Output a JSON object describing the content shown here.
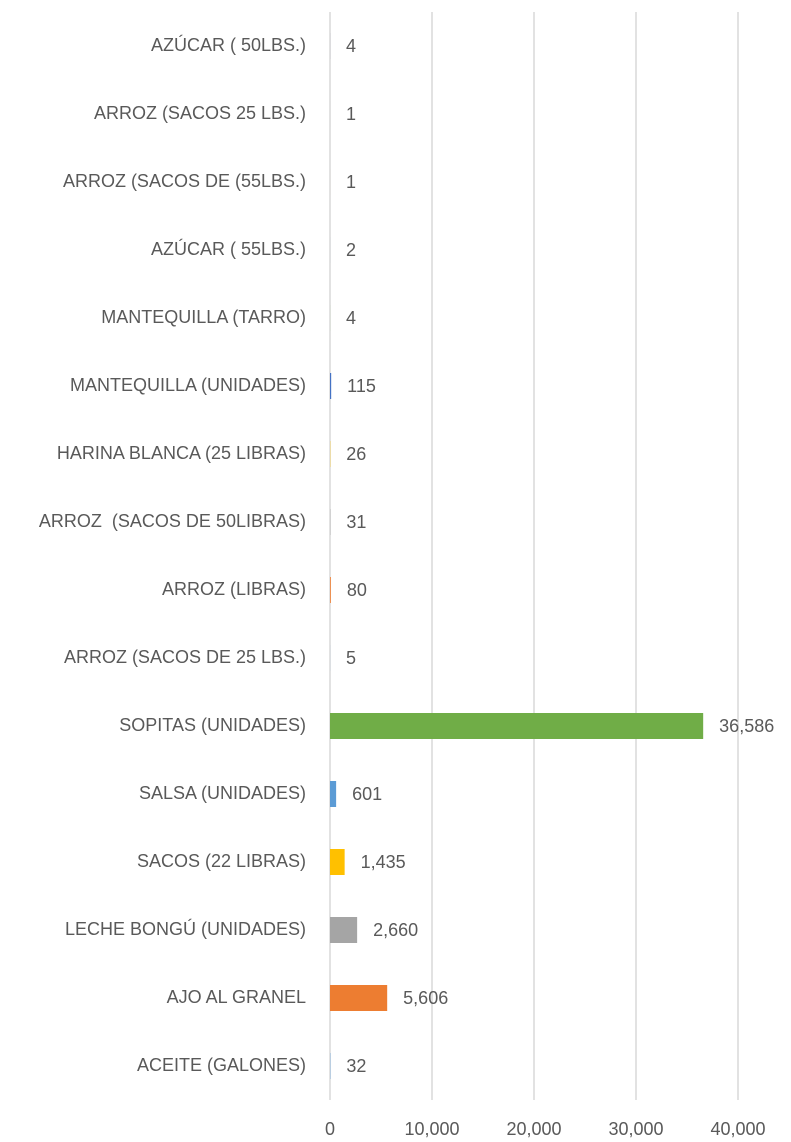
{
  "chart_data": {
    "type": "bar",
    "orientation": "horizontal",
    "categories": [
      "AZÚCAR ( 50LBS.)",
      "ARROZ (SACOS 25 LBS.)",
      "ARROZ (SACOS DE (55LBS.)",
      "AZÚCAR ( 55LBS.)",
      "MANTEQUILLA (TARRO)",
      "MANTEQUILLA (UNIDADES)",
      "HARINA BLANCA (25 LIBRAS)",
      "ARROZ  (SACOS DE 50LIBRAS)",
      "ARROZ (LIBRAS)",
      "ARROZ (SACOS DE 25 LBS.)",
      "SOPITAS (UNIDADES)",
      "SALSA (UNIDADES)",
      "SACOS (22 LIBRAS)",
      "LECHE BONGÚ (UNIDADES)",
      "AJO AL GRANEL",
      "ACEITE (GALONES)"
    ],
    "values": [
      4,
      1,
      1,
      2,
      4,
      115,
      26,
      31,
      80,
      5,
      36586,
      601,
      1435,
      2660,
      5606,
      32
    ],
    "value_labels": [
      "4",
      "1",
      "1",
      "2",
      "4",
      "115",
      "26",
      "31",
      "80",
      "5",
      "36,586",
      "601",
      "1,435",
      "2,660",
      "5,606",
      "32"
    ],
    "colors": [
      "#264478",
      "#636363",
      "#9e480e",
      "#255e91",
      "#70ad47",
      "#4472c4",
      "#ffc000",
      "#a5a5a5",
      "#ed7d31",
      "#5b9bd5",
      "#70ad47",
      "#5b9bd5",
      "#ffc000",
      "#a5a5a5",
      "#ed7d31",
      "#5b9bd5"
    ],
    "xlim": [
      0,
      40000
    ],
    "xticks": [
      0,
      {
        "value": 10000,
        "label": "10,000"
      },
      {
        "value": 20000,
        "label": "20,000"
      },
      {
        "value": 30000,
        "label": "30,000"
      },
      {
        "value": 40000,
        "label": "40,000"
      }
    ],
    "grid": true
  }
}
